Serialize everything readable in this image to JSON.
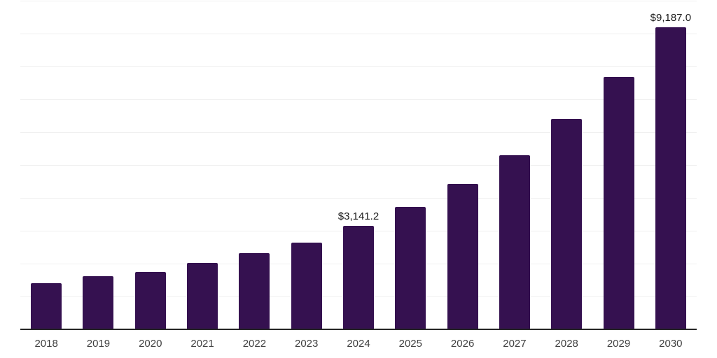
{
  "chart_data": {
    "type": "bar",
    "categories": [
      "2018",
      "2019",
      "2020",
      "2021",
      "2022",
      "2023",
      "2024",
      "2025",
      "2026",
      "2027",
      "2028",
      "2029",
      "2030"
    ],
    "values": [
      1400,
      1615,
      1745,
      2020,
      2320,
      2645,
      3141.2,
      3720,
      4430,
      5305,
      6415,
      7690,
      9187
    ],
    "data_labels": {
      "2024": "$3,141.2",
      "2030": "$9,187.0"
    },
    "title": "",
    "xlabel": "",
    "ylabel": "",
    "ylim": [
      0,
      10000
    ],
    "grid_step": 1000,
    "grid": true,
    "legend": false,
    "colors": {
      "bar": "#351150",
      "gridline": "#f0f0f0",
      "axis": "#262626",
      "data_label": "#1a1a1a",
      "tick_label": "#404040",
      "background": "#ffffff"
    }
  }
}
